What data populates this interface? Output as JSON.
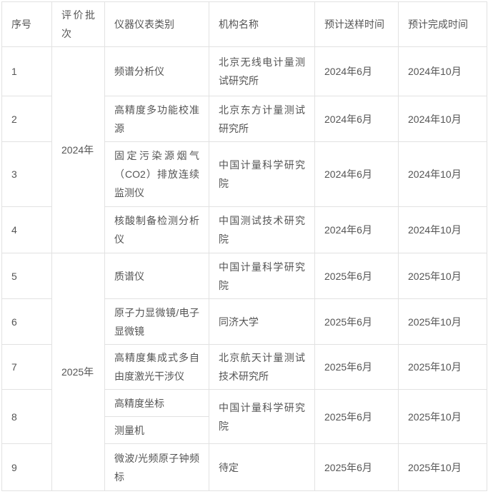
{
  "colors": {
    "border": "#e2e2e2",
    "text": "#555555",
    "background": "#ffffff"
  },
  "table": {
    "headers": {
      "no": "序号",
      "batch": "评价批次",
      "category": "仪器仪表类别",
      "org": "机构名称",
      "send": "预计送样时间",
      "done": "预计完成时间"
    },
    "batches": [
      {
        "label": "2024年"
      },
      {
        "label": "2025年"
      }
    ],
    "rows": [
      {
        "no": "1",
        "category": "频谱分析仪",
        "org": "北京无线电计量测试研究所",
        "send": "2024年6月",
        "done": "2024年10月"
      },
      {
        "no": "2",
        "category": "高精度多功能校准源",
        "org": "北京东方计量测试研究所",
        "send": "2024年6月",
        "done": "2024年10月"
      },
      {
        "no": "3",
        "category": "固定污染源烟气（CO2）排放连续监测仪",
        "org": "中国计量科学研究院",
        "send": "2024年6月",
        "done": "2024年10月"
      },
      {
        "no": "4",
        "category": "核酸制备检测分析仪",
        "org": "中国测试技术研究院",
        "send": "2024年6月",
        "done": "2024年10月"
      },
      {
        "no": "5",
        "category": "质谱仪",
        "org": "中国计量科学研究院",
        "send": "2025年6月",
        "done": "2025年10月"
      },
      {
        "no": "6",
        "category": "原子力显微镜/电子显微镜",
        "org": "同济大学",
        "send": "2025年6月",
        "done": "2025年10月"
      },
      {
        "no": "7",
        "category": "高精度集成式多自由度激光干涉仪",
        "org": "北京航天计量测试技术研究所",
        "send": "2025年6月",
        "done": "2025年10月"
      },
      {
        "no": "8",
        "category_top": "高精度坐标",
        "category_bottom": "测量机",
        "org": "中国计量科学研究院",
        "send": "2025年6月",
        "done": "2025年10月"
      },
      {
        "no": "9",
        "category": "微波/光频原子钟频标",
        "org": "待定",
        "send": "2025年6月",
        "done": "2025年10月"
      }
    ]
  }
}
